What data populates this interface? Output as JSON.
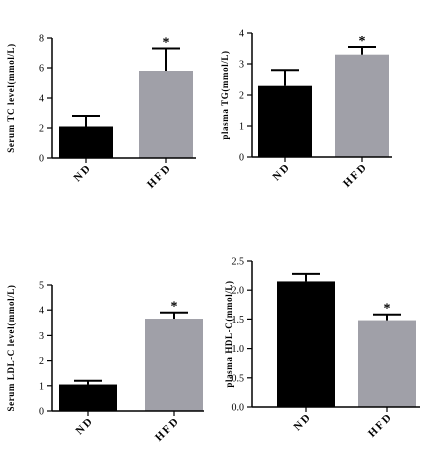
{
  "chart_data": [
    {
      "type": "bar",
      "ylabel": "Serum TC level(mmol/L)",
      "categories": [
        "ND",
        "HFD"
      ],
      "values": [
        2.1,
        5.8
      ],
      "errors": [
        0.7,
        1.5
      ],
      "significance": [
        "",
        "*"
      ],
      "ylim": [
        0,
        8
      ],
      "yticks": [
        "0",
        "2",
        "4",
        "6",
        "8"
      ],
      "colors": [
        "#000000",
        "#a0a0a8"
      ]
    },
    {
      "type": "bar",
      "ylabel": "plasma TG(mmol/L)",
      "categories": [
        "ND",
        "HFD"
      ],
      "values": [
        2.3,
        3.3
      ],
      "errors": [
        0.5,
        0.25
      ],
      "significance": [
        "",
        "*"
      ],
      "ylim": [
        0,
        4
      ],
      "yticks": [
        "0",
        "1",
        "2",
        "3",
        "4"
      ],
      "colors": [
        "#000000",
        "#a0a0a8"
      ]
    },
    {
      "type": "bar",
      "ylabel": "Serum LDL-C level(mmol/L)",
      "categories": [
        "ND",
        "HFD"
      ],
      "values": [
        1.05,
        3.65
      ],
      "errors": [
        0.15,
        0.25
      ],
      "significance": [
        "",
        "*"
      ],
      "ylim": [
        0,
        5
      ],
      "yticks": [
        "0",
        "1",
        "2",
        "3",
        "4",
        "5"
      ],
      "colors": [
        "#000000",
        "#a0a0a8"
      ]
    },
    {
      "type": "bar",
      "ylabel": "plasma HDL-C(mmol/L)",
      "categories": [
        "ND",
        "HFD"
      ],
      "values": [
        2.15,
        1.48
      ],
      "errors": [
        0.13,
        0.1
      ],
      "significance": [
        "",
        "*"
      ],
      "ylim": [
        0,
        2.5
      ],
      "yticks": [
        "0.0",
        "0.5",
        "1.0",
        "1.5",
        "2.0",
        "2.5"
      ],
      "colors": [
        "#000000",
        "#a0a0a8"
      ]
    }
  ]
}
